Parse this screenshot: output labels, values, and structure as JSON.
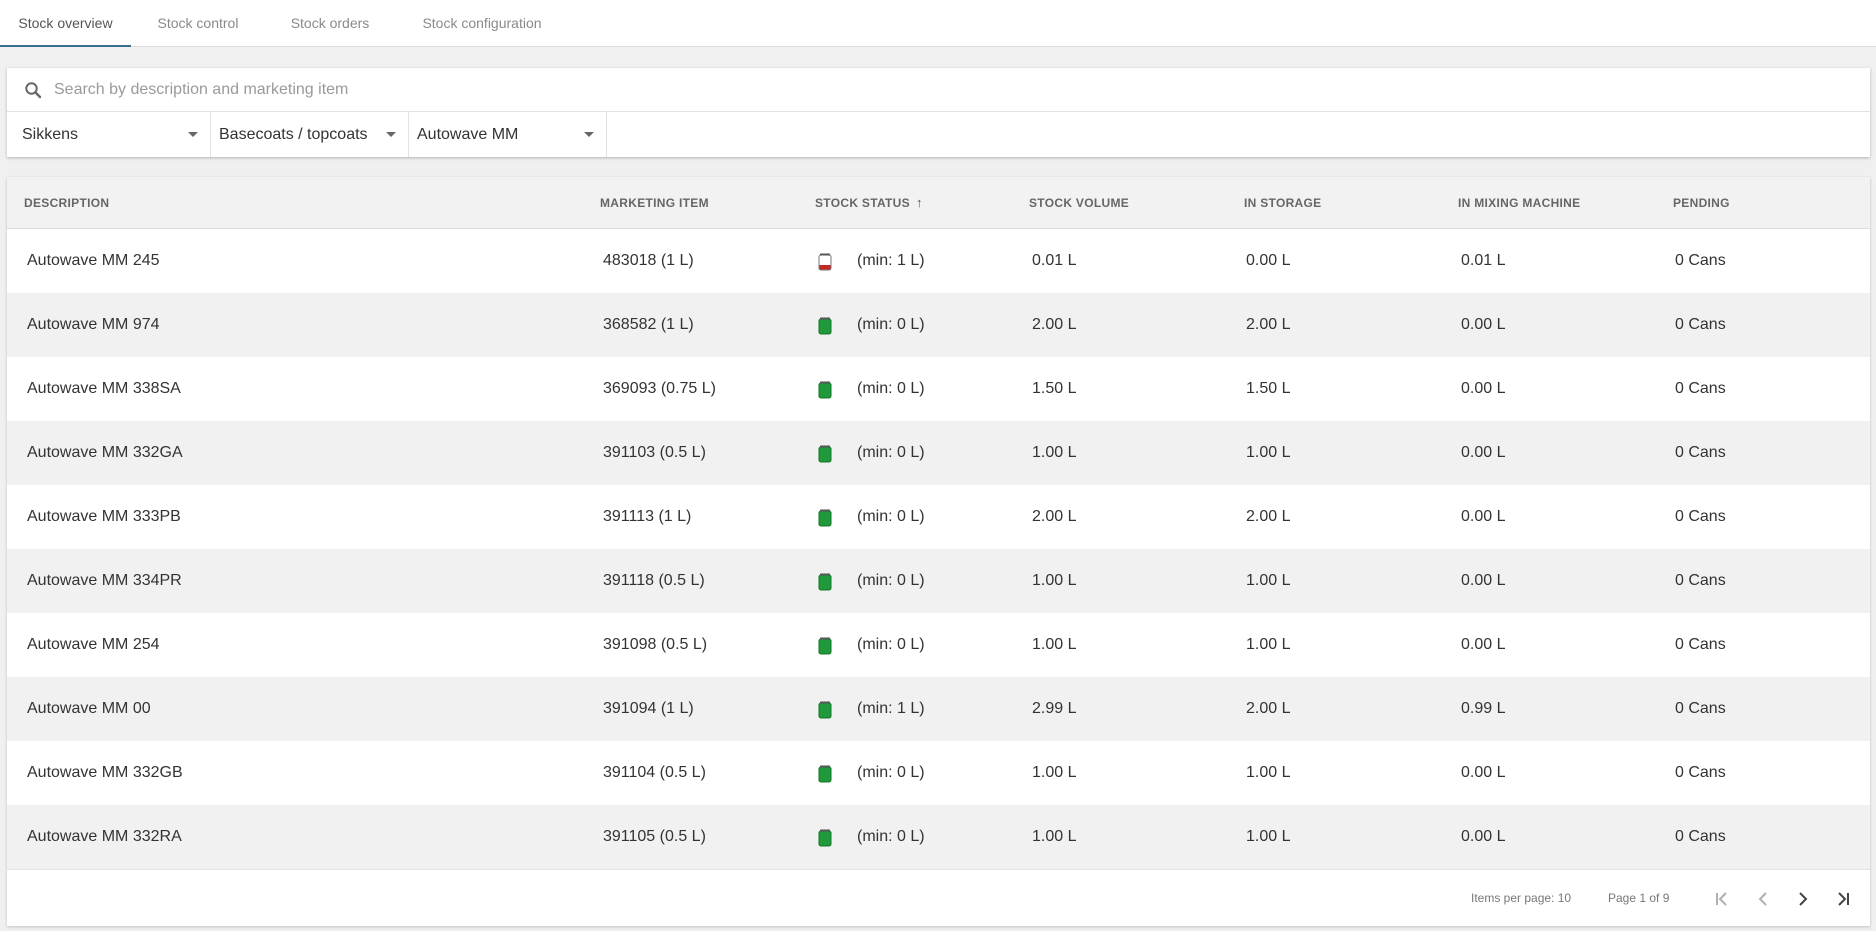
{
  "tabs": [
    {
      "label": "Stock overview",
      "active": true
    },
    {
      "label": "Stock control",
      "active": false
    },
    {
      "label": "Stock orders",
      "active": false
    },
    {
      "label": "Stock configuration",
      "active": false
    }
  ],
  "search": {
    "placeholder": "Search by description and marketing item",
    "value": "",
    "icon": "search-icon"
  },
  "filters": {
    "brand": "Sikkens",
    "category": "Basecoats / topcoats",
    "product": "Autowave MM"
  },
  "table": {
    "columns": {
      "description": "DESCRIPTION",
      "marketing_item": "MARKETING ITEM",
      "stock_status": "STOCK STATUS",
      "stock_volume": "STOCK VOLUME",
      "in_storage": "IN STORAGE",
      "in_mixing_machine": "IN MIXING MACHINE",
      "pending": "PENDING"
    },
    "sort": {
      "column": "stock_status",
      "direction": "asc",
      "icon": "arrow-up-icon"
    },
    "rows": [
      {
        "description": "Autowave MM 245",
        "marketing_item": "483018 (1 L)",
        "status": "low",
        "min": "(min: 1 L)",
        "stock_volume": "0.01 L",
        "in_storage": "0.00 L",
        "in_mixing_machine": "0.01 L",
        "pending": "0 Cans"
      },
      {
        "description": "Autowave MM 974",
        "marketing_item": "368582 (1 L)",
        "status": "ok",
        "min": "(min: 0 L)",
        "stock_volume": "2.00 L",
        "in_storage": "2.00 L",
        "in_mixing_machine": "0.00 L",
        "pending": "0 Cans"
      },
      {
        "description": "Autowave MM 338SA",
        "marketing_item": "369093 (0.75 L)",
        "status": "ok",
        "min": "(min: 0 L)",
        "stock_volume": "1.50 L",
        "in_storage": "1.50 L",
        "in_mixing_machine": "0.00 L",
        "pending": "0 Cans"
      },
      {
        "description": "Autowave MM 332GA",
        "marketing_item": "391103 (0.5 L)",
        "status": "ok",
        "min": "(min: 0 L)",
        "stock_volume": "1.00 L",
        "in_storage": "1.00 L",
        "in_mixing_machine": "0.00 L",
        "pending": "0 Cans"
      },
      {
        "description": "Autowave MM 333PB",
        "marketing_item": "391113 (1 L)",
        "status": "ok",
        "min": "(min: 0 L)",
        "stock_volume": "2.00 L",
        "in_storage": "2.00 L",
        "in_mixing_machine": "0.00 L",
        "pending": "0 Cans"
      },
      {
        "description": "Autowave MM 334PR",
        "marketing_item": "391118 (0.5 L)",
        "status": "ok",
        "min": "(min: 0 L)",
        "stock_volume": "1.00 L",
        "in_storage": "1.00 L",
        "in_mixing_machine": "0.00 L",
        "pending": "0 Cans"
      },
      {
        "description": "Autowave MM 254",
        "marketing_item": "391098 (0.5 L)",
        "status": "ok",
        "min": "(min: 0 L)",
        "stock_volume": "1.00 L",
        "in_storage": "1.00 L",
        "in_mixing_machine": "0.00 L",
        "pending": "0 Cans"
      },
      {
        "description": "Autowave MM 00",
        "marketing_item": "391094 (1 L)",
        "status": "ok",
        "min": "(min: 1 L)",
        "stock_volume": "2.99 L",
        "in_storage": "2.00 L",
        "in_mixing_machine": "0.99 L",
        "pending": "0 Cans"
      },
      {
        "description": "Autowave MM 332GB",
        "marketing_item": "391104 (0.5 L)",
        "status": "ok",
        "min": "(min: 0 L)",
        "stock_volume": "1.00 L",
        "in_storage": "1.00 L",
        "in_mixing_machine": "0.00 L",
        "pending": "0 Cans"
      },
      {
        "description": "Autowave MM 332RA",
        "marketing_item": "391105 (0.5 L)",
        "status": "ok",
        "min": "(min: 0 L)",
        "stock_volume": "1.00 L",
        "in_storage": "1.00 L",
        "in_mixing_machine": "0.00 L",
        "pending": "0 Cans"
      }
    ]
  },
  "pagination": {
    "items_per_page": "Items per page: 10",
    "page_info": "Page 1 of 9",
    "icons": [
      "first-page-icon",
      "previous-page-icon",
      "next-page-icon",
      "last-page-icon"
    ]
  },
  "colors": {
    "accent": "#3b6f8f",
    "status_ok": "#1e9a3a",
    "status_low": "#c62828"
  }
}
